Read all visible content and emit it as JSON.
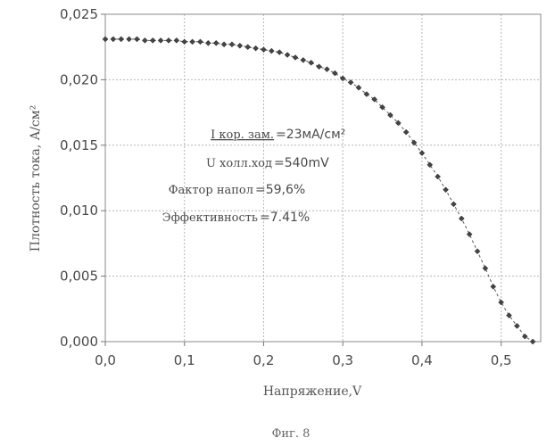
{
  "chart_data": {
    "type": "scatter",
    "title": "",
    "xlabel": "Напряжение,V",
    "ylabel": "Плотность тока, А/см²",
    "xlim": [
      0.0,
      0.55
    ],
    "ylim": [
      0.0,
      0.025
    ],
    "x_ticks": [
      "0,0",
      "0,1",
      "0,2",
      "0,3",
      "0,4",
      "0,5"
    ],
    "y_ticks": [
      "0,000",
      "0,005",
      "0,010",
      "0,015",
      "0,020",
      "0,025"
    ],
    "grid": true,
    "series": [
      {
        "x": [
          0.0,
          0.01,
          0.02,
          0.03,
          0.04,
          0.05,
          0.06,
          0.07,
          0.08,
          0.09,
          0.1,
          0.11,
          0.12,
          0.13,
          0.14,
          0.15,
          0.16,
          0.17,
          0.18,
          0.19,
          0.2,
          0.21,
          0.22,
          0.23,
          0.24,
          0.25,
          0.26,
          0.27,
          0.28,
          0.29,
          0.3,
          0.31,
          0.32,
          0.33,
          0.34,
          0.35,
          0.36,
          0.37,
          0.38,
          0.39,
          0.4,
          0.41,
          0.42,
          0.43,
          0.44,
          0.45,
          0.46,
          0.47,
          0.48,
          0.49,
          0.5,
          0.51,
          0.52,
          0.53,
          0.54
        ],
        "y": [
          0.0231,
          0.0231,
          0.0231,
          0.0231,
          0.0231,
          0.023,
          0.023,
          0.023,
          0.023,
          0.023,
          0.0229,
          0.0229,
          0.0229,
          0.0228,
          0.0228,
          0.0227,
          0.0227,
          0.0226,
          0.0225,
          0.0224,
          0.0223,
          0.0222,
          0.0221,
          0.0219,
          0.0217,
          0.0215,
          0.0213,
          0.021,
          0.0208,
          0.0205,
          0.0201,
          0.0198,
          0.0194,
          0.0189,
          0.0185,
          0.0179,
          0.0173,
          0.0167,
          0.016,
          0.0152,
          0.0144,
          0.0135,
          0.0126,
          0.0116,
          0.0105,
          0.0094,
          0.0082,
          0.0069,
          0.0056,
          0.0042,
          0.003,
          0.002,
          0.0012,
          0.0004,
          0.0
        ]
      }
    ],
    "annotations": [
      {
        "label": "I кор. зам.",
        "value": "=23мА/см²"
      },
      {
        "label": "U холл.ход",
        "value": "=540mV"
      },
      {
        "label": "Фактор напол",
        "value": "=59,6%"
      },
      {
        "label": "Эффективность",
        "value": "=7.41%"
      }
    ],
    "caption": "Фиг. 8"
  }
}
